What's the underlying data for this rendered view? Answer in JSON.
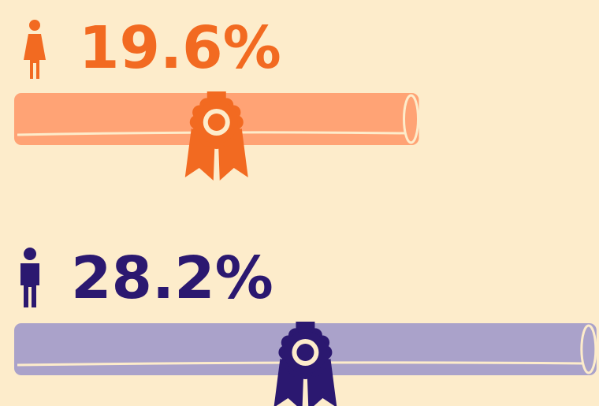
{
  "chart_data": {
    "type": "bar",
    "categories": [
      null,
      null
    ],
    "values": [
      19.6,
      28.2
    ],
    "value_labels": [
      "19.6%",
      "28.2%"
    ],
    "colors": [
      "#ffa375",
      "#aaa2ca"
    ],
    "label_colors": [
      "#f26a21",
      "#2b1870"
    ]
  }
}
